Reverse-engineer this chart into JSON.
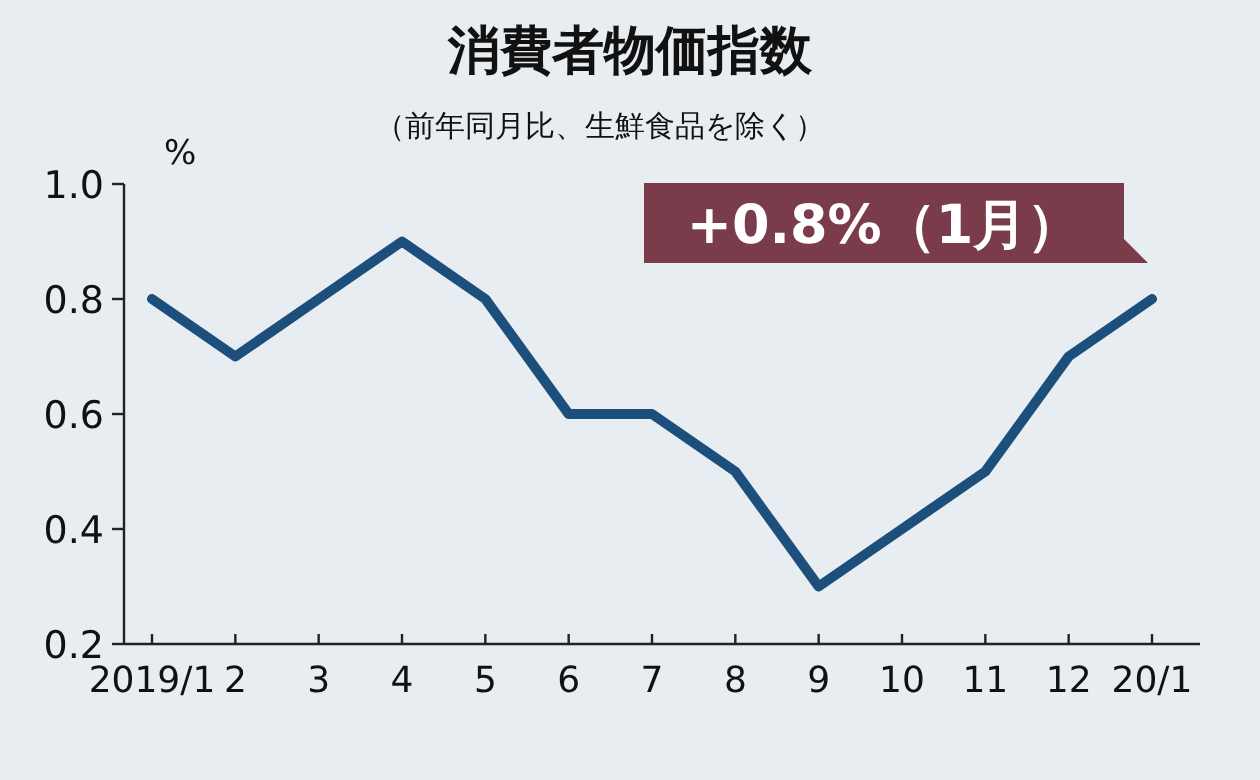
{
  "chart_data": {
    "type": "line",
    "title": "消費者物価指数",
    "subtitle": "（前年同月比、生鮮食品を除く）",
    "ylabel": "%",
    "categories": [
      "2019/1",
      "2",
      "3",
      "4",
      "5",
      "6",
      "7",
      "8",
      "9",
      "10",
      "11",
      "12",
      "20/1"
    ],
    "series": [
      {
        "color": "#1d4f7c",
        "values": [
          0.8,
          0.7,
          0.8,
          0.9,
          0.8,
          0.6,
          0.6,
          0.5,
          0.3,
          0.4,
          0.5,
          0.7,
          0.8
        ]
      }
    ],
    "ylim": [
      0.2,
      1.0
    ],
    "yticks": [
      0.2,
      0.4,
      0.6,
      0.8,
      {
        "value": 1.0,
        "label": "1.0"
      }
    ],
    "annotations": [
      {
        "text": "+0.8%（1月）",
        "x": "20/1",
        "y": 0.8
      }
    ],
    "grid": false,
    "marker": "none",
    "line_style": "solid"
  }
}
